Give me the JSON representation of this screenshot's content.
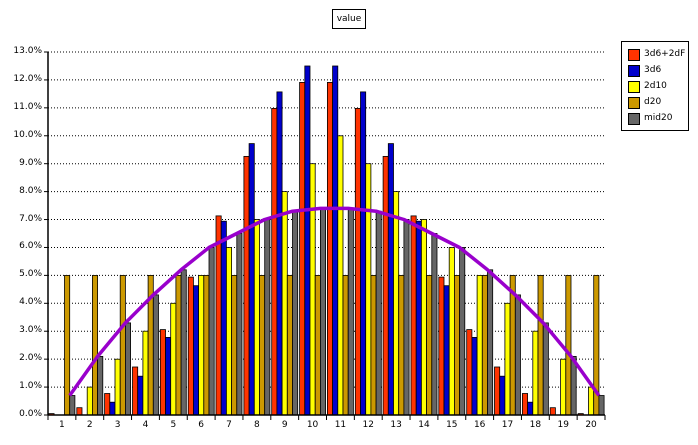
{
  "chart_data": {
    "type": "bar",
    "title": "value",
    "xlabel": "",
    "ylabel": "",
    "ylim": [
      0,
      13
    ],
    "y_tick_labels": [
      "0.0%",
      "1.0%",
      "2.0%",
      "3.0%",
      "4.0%",
      "5.0%",
      "6.0%",
      "7.0%",
      "8.0%",
      "9.0%",
      "10.0%",
      "11.0%",
      "12.0%",
      "13.0%"
    ],
    "grid": true,
    "legend_position": "right",
    "categories": [
      "1",
      "2",
      "3",
      "4",
      "5",
      "6",
      "7",
      "8",
      "9",
      "10",
      "11",
      "12",
      "13",
      "14",
      "15",
      "16",
      "17",
      "18",
      "19",
      "20"
    ],
    "series": [
      {
        "name": "3d6+2dF",
        "color": "#ff3300",
        "values": [
          0.05,
          0.26,
          0.77,
          1.72,
          3.06,
          4.94,
          7.13,
          9.26,
          10.98,
          11.91,
          11.91,
          10.98,
          9.26,
          7.13,
          4.94,
          3.06,
          1.72,
          0.77,
          0.26,
          0.05
        ]
      },
      {
        "name": "3d6",
        "color": "#0000cc",
        "values": [
          0,
          0,
          0.46,
          1.39,
          2.78,
          4.63,
          6.94,
          9.72,
          11.57,
          12.5,
          12.5,
          11.57,
          9.72,
          6.94,
          4.63,
          2.78,
          1.39,
          0.46,
          0,
          0
        ]
      },
      {
        "name": "2d10",
        "color": "#ffff00",
        "values": [
          0,
          1,
          2,
          3,
          4,
          5,
          6,
          7,
          8,
          9,
          10,
          9,
          8,
          7,
          6,
          5,
          4,
          3,
          2,
          1
        ]
      },
      {
        "name": "d20",
        "color": "#cc9900",
        "values": [
          5,
          5,
          5,
          5,
          5,
          5,
          5,
          5,
          5,
          5,
          5,
          5,
          5,
          5,
          5,
          5,
          5,
          5,
          5,
          5
        ]
      },
      {
        "name": "mid20",
        "color": "#666666",
        "values": [
          0.7,
          2.1,
          3.3,
          4.3,
          5.2,
          6.0,
          6.5,
          7.0,
          7.3,
          7.4,
          7.4,
          7.3,
          7.0,
          6.5,
          6.0,
          5.2,
          4.3,
          3.3,
          2.1,
          0.7
        ]
      }
    ],
    "trendline": {
      "name": "mid20 trend",
      "color": "#9900cc",
      "values": [
        0.7,
        2.1,
        3.3,
        4.3,
        5.2,
        6.0,
        6.5,
        7.0,
        7.3,
        7.4,
        7.4,
        7.3,
        7.0,
        6.5,
        6.0,
        5.2,
        4.3,
        3.3,
        2.1,
        0.7
      ]
    }
  },
  "legend": {
    "items": [
      {
        "label": "3d6+2dF",
        "color": "#ff3300"
      },
      {
        "label": "3d6",
        "color": "#0000cc"
      },
      {
        "label": "2d10",
        "color": "#ffff00"
      },
      {
        "label": "d20",
        "color": "#cc9900"
      },
      {
        "label": "mid20",
        "color": "#666666"
      }
    ]
  }
}
